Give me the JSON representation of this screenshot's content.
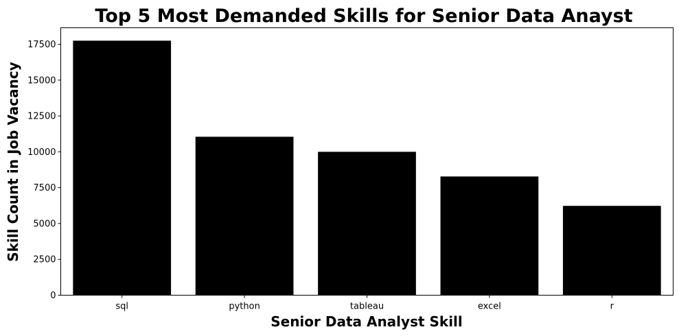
{
  "chart_data": {
    "type": "bar",
    "title": "Top 5 Most Demanded Skills for Senior Data Anayst",
    "xlabel": "Senior Data Analyst Skill",
    "ylabel": "Skill Count in Job Vacancy",
    "categories": [
      "sql",
      "python",
      "tableau",
      "excel",
      "r"
    ],
    "values": [
      17750,
      11050,
      10000,
      8280,
      6230
    ],
    "ylim": [
      0,
      18650
    ],
    "yticks": [
      0,
      2500,
      5000,
      7500,
      10000,
      12500,
      15000,
      17500
    ],
    "ytick_labels": [
      "0",
      "2500",
      "5000",
      "7500",
      "10000",
      "12500",
      "15000",
      "17500"
    ],
    "bar_color": "#000000",
    "grid": false,
    "legend": "none"
  }
}
